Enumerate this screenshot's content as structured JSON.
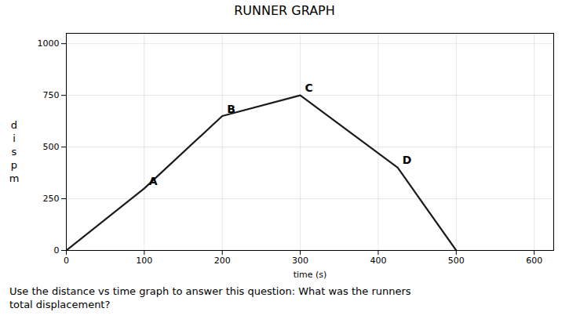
{
  "chart_data": {
    "type": "line",
    "title": "RUNNER GRAPH",
    "subtitle": [
      "Use the distance vs time graph to answer this question: What was the runners",
      "total displacement?"
    ],
    "xlabel": "time (s)",
    "ylabel": [
      "d",
      "i",
      "s",
      "p",
      "m"
    ],
    "x": [
      0,
      100,
      200,
      300,
      425,
      500
    ],
    "values": [
      0,
      300,
      650,
      750,
      400,
      0
    ],
    "color": "#1a1a1a",
    "annotations": [
      {
        "x": 100,
        "y": 300,
        "text": "A"
      },
      {
        "x": 200,
        "y": 650,
        "text": "B"
      },
      {
        "x": 300,
        "y": 750,
        "text": "C"
      },
      {
        "x": 425,
        "y": 400,
        "text": "D"
      }
    ],
    "xlim": [
      0,
      625
    ],
    "ylim": [
      0,
      1050
    ],
    "xticks": [
      0,
      100,
      200,
      300,
      400,
      500,
      600
    ],
    "yticks": [
      0,
      250,
      500,
      750,
      1000
    ],
    "grid": true
  }
}
